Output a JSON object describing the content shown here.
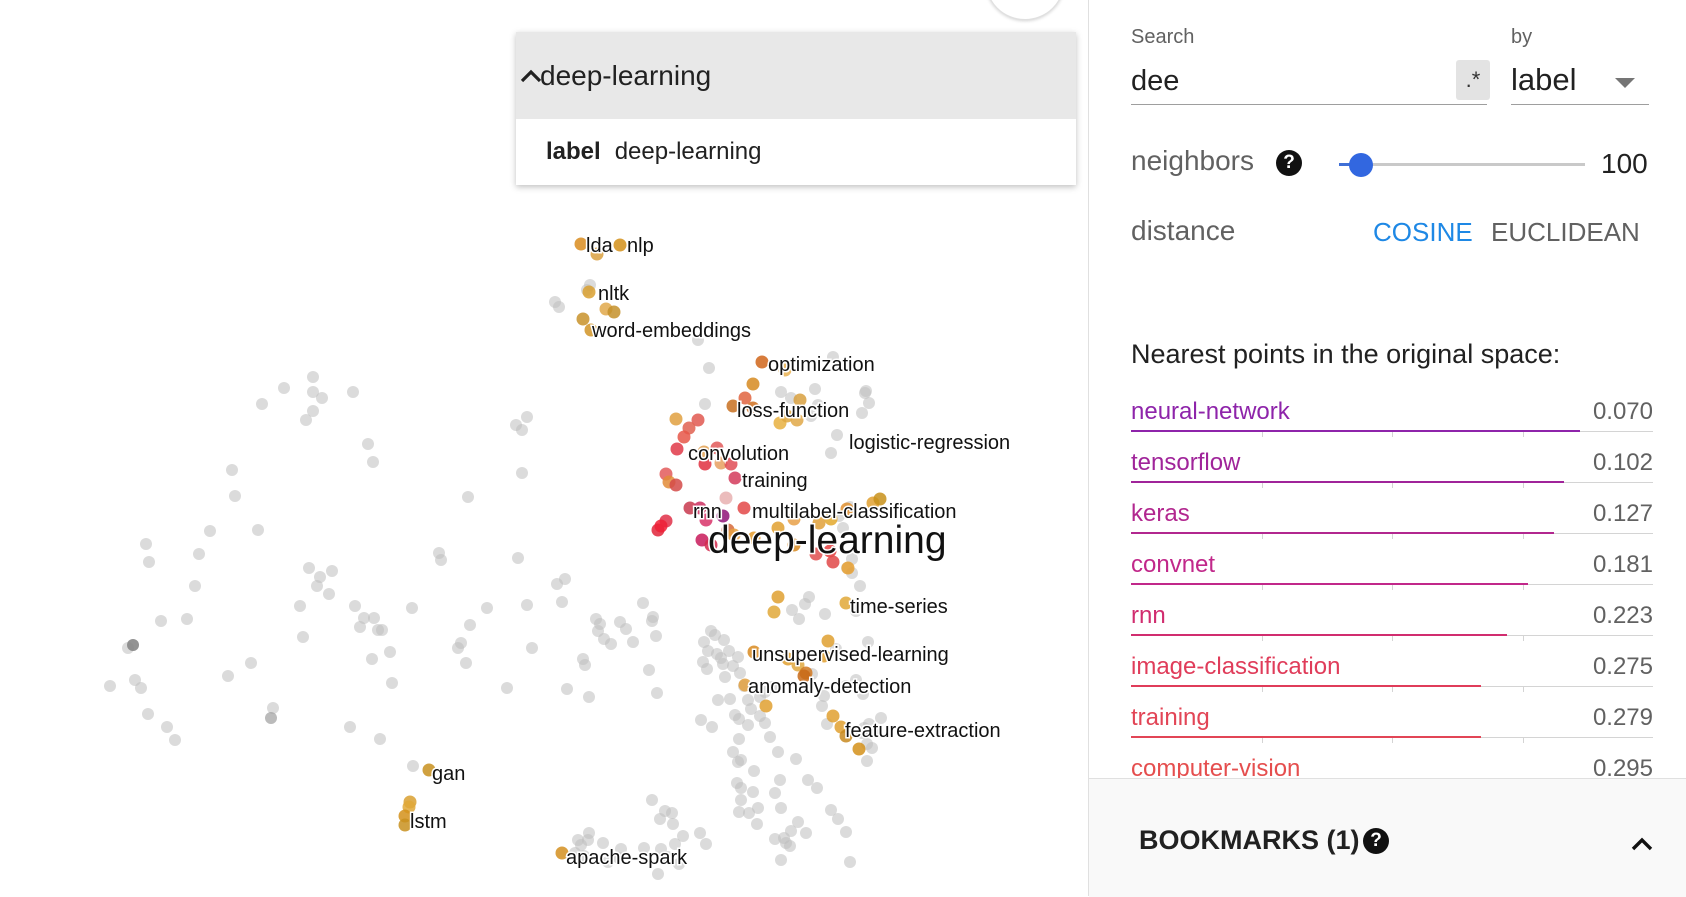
{
  "search_card": {
    "title": "deep-learning",
    "result_key": "label",
    "result_value": "deep-learning"
  },
  "projection": {
    "focus_label": "deep-learning",
    "labels": [
      {
        "text": "lda"
      },
      {
        "text": "nlp"
      },
      {
        "text": "nltk"
      },
      {
        "text": "word-embeddings"
      },
      {
        "text": "optimization"
      },
      {
        "text": "loss-function"
      },
      {
        "text": "logistic-regression"
      },
      {
        "text": "convolution"
      },
      {
        "text": "training"
      },
      {
        "text": "rnn"
      },
      {
        "text": "multilabel-classification"
      },
      {
        "text": "time-series"
      },
      {
        "text": "unsupervised-learning"
      },
      {
        "text": "anomaly-detection"
      },
      {
        "text": "feature-extraction"
      },
      {
        "text": "gan"
      },
      {
        "text": "lstm"
      },
      {
        "text": "apache-spark"
      }
    ]
  },
  "inspector": {
    "search_label": "Search",
    "search_value": "dee",
    "regex_label": ".*",
    "by_label": "by",
    "by_value": "label",
    "neighbors_label": "neighbors",
    "neighbors_value": "100",
    "neighbors_fraction": 0.09,
    "help_glyph": "?",
    "distance_label": "distance",
    "cosine_label": "COSINE",
    "euclidean_label": "EUCLIDEAN",
    "nearest_title": "Nearest points in the original space:",
    "nearest": [
      {
        "name": "neural-network",
        "distance": "0.070",
        "color": "#8e24aa",
        "bar_fraction": 0.86
      },
      {
        "name": "tensorflow",
        "distance": "0.102",
        "color": "#a0249a",
        "bar_fraction": 0.83
      },
      {
        "name": "keras",
        "distance": "0.127",
        "color": "#b2278f",
        "bar_fraction": 0.81
      },
      {
        "name": "convnet",
        "distance": "0.181",
        "color": "#c1288a",
        "bar_fraction": 0.76
      },
      {
        "name": "rnn",
        "distance": "0.223",
        "color": "#d12d6f",
        "bar_fraction": 0.72
      },
      {
        "name": "image-classification",
        "distance": "0.275",
        "color": "#e03c5a",
        "bar_fraction": 0.67
      },
      {
        "name": "training",
        "distance": "0.279",
        "color": "#e24556",
        "bar_fraction": 0.67
      },
      {
        "name": "computer-vision",
        "distance": "0.295",
        "color": "#e54e4e",
        "bar_fraction": 0.65
      }
    ],
    "bookmarks_label": "BOOKMARKS (1)"
  }
}
